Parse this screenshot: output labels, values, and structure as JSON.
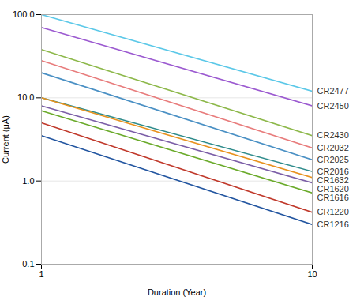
{
  "chart_data": {
    "type": "line",
    "xlabel": "Duration (Year)",
    "ylabel": "Current (μA)",
    "x": [
      1,
      10
    ],
    "series": [
      {
        "name": "CR2477",
        "color": "#5bc8e8",
        "values": [
          100.0,
          12.0
        ]
      },
      {
        "name": "CR2450",
        "color": "#9b59d0",
        "values": [
          70.0,
          8.0
        ]
      },
      {
        "name": "CR2430",
        "color": "#8db84a",
        "values": [
          38.0,
          3.5
        ]
      },
      {
        "name": "CR2032",
        "color": "#e87c7c",
        "values": [
          28.0,
          2.5
        ]
      },
      {
        "name": "CR2025",
        "color": "#4a90c4",
        "values": [
          20.0,
          1.8
        ]
      },
      {
        "name": "CR2016",
        "color": "#2e8b8b",
        "values": [
          10.0,
          1.3
        ]
      },
      {
        "name": "CR1632",
        "color": "#e8921e",
        "values": [
          10.0,
          1.1
        ]
      },
      {
        "name": "CR1620",
        "color": "#7b5ea7",
        "values": [
          8.0,
          0.95
        ]
      },
      {
        "name": "CR1616",
        "color": "#6aaa2a",
        "values": [
          7.0,
          0.72
        ]
      },
      {
        "name": "CR1220",
        "color": "#c0392b",
        "values": [
          5.0,
          0.42
        ]
      },
      {
        "name": "CR1216",
        "color": "#2255a0",
        "values": [
          3.5,
          0.3
        ]
      }
    ],
    "xlim": [
      1,
      10
    ],
    "ylim": [
      0.1,
      100.0
    ],
    "xticks": [
      1,
      10
    ],
    "yticks": [
      0.1,
      {
        "value": 1.0,
        "label": "1.0"
      },
      {
        "value": 10.0,
        "label": "10.0"
      },
      {
        "value": 100.0,
        "label": "100.0"
      }
    ],
    "log": true,
    "grid": true
  }
}
